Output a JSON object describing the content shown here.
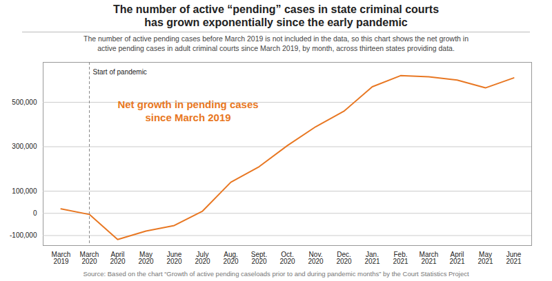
{
  "chart_data": {
    "type": "line",
    "title": "The number of active “pending” cases in state criminal courts\nhas grown exponentially since the early pandemic",
    "subtitle": "The number of active pending cases before March 2019 is not included in the data, so this chart shows the net growth in\nactive pending cases in adult criminal courts since March 2019, by month, across thirteen states providing data.",
    "source": "Source: Based on the chart “Growth of active pending caseloads prior to and during pandemic months” by the Court Statistics Project",
    "annotations": [
      {
        "text": "Start of pandemic",
        "x": "March\n2020"
      },
      {
        "text": "Net growth in pending cases\nsince March 2019",
        "color": "#E87722"
      }
    ],
    "categories": [
      "March\n2019",
      "March\n2020",
      "April\n2020",
      "May\n2020",
      "June\n2020",
      "July\n2020",
      "Aug.\n2020",
      "Sept.\n2020",
      "Oct.\n2020",
      "Nov.\n2020",
      "Dec.\n2020",
      "Jan.\n2021",
      "Feb.\n2021",
      "March\n2021",
      "April\n2021",
      "May\n2021",
      "June\n2021"
    ],
    "values": [
      20000,
      -5000,
      -118000,
      -80000,
      -55000,
      10000,
      140000,
      210000,
      305000,
      390000,
      460000,
      570000,
      620000,
      615000,
      600000,
      565000,
      610000
    ],
    "color": "#E87722",
    "ylim": [
      -145000,
      680000
    ],
    "yticks": [
      {
        "value": -100000,
        "label": "-100,000"
      },
      0,
      {
        "value": 100000,
        "label": "100,000"
      },
      {
        "value": 300000,
        "label": "300,000"
      },
      {
        "value": 500000,
        "label": "500,000"
      }
    ],
    "grid": true
  }
}
